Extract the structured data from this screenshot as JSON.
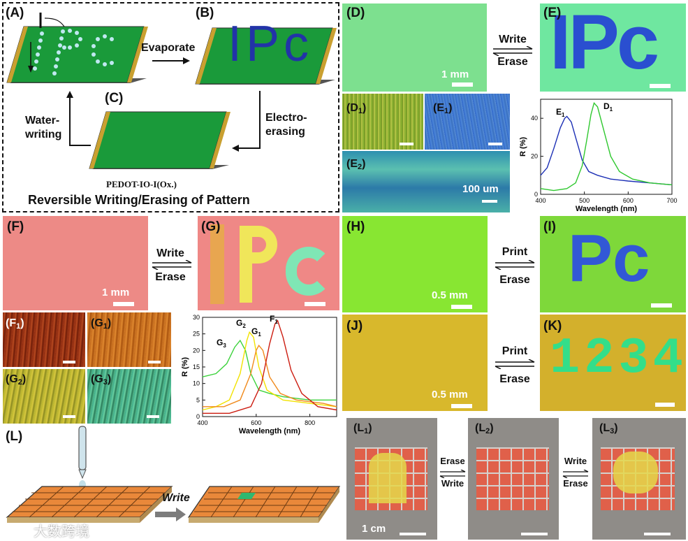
{
  "schematic": {
    "label_A": "(A)",
    "label_B": "(B)",
    "label_C": "(C)",
    "step_evaporate": "Evaporate",
    "step_erase_1": "Electro-",
    "step_erase_2": "erasing",
    "step_write_1": "Water-",
    "step_write_2": "writing",
    "material": "PEDOT-IO-I(Ox.)",
    "caption": "Reversible Writing/Erasing of Pattern",
    "pattern_text": "IPc"
  },
  "panel_DE": {
    "label_D": "(D)",
    "label_E": "(E)",
    "write": "Write",
    "erase": "Erase",
    "scale_D": "1 mm",
    "label_D1": "(D",
    "label_E1": "(E",
    "label_E2": "(E",
    "sub_1": "1",
    "sub_2": "2",
    "scale_E2": "100 um",
    "colors": {
      "bg_D": "#7de08f",
      "bg_E": "#6fe7a0",
      "letters_E": "#2a4fd0"
    }
  },
  "chart_DE": {
    "chart_data": {
      "type": "line",
      "xlabel": "Wavelength (nm)",
      "ylabel": "R (%)",
      "xlim": [
        400,
        700
      ],
      "ylim": [
        0,
        50
      ],
      "xticks": [
        "400",
        "500",
        "600",
        "700"
      ],
      "yticks": [
        "0",
        "20",
        "40"
      ],
      "series": [
        {
          "name": "E1",
          "label": "E",
          "sub": "1",
          "color": "#1c2fb5",
          "x": [
            400,
            415,
            430,
            445,
            455,
            460,
            470,
            480,
            495,
            510,
            530,
            560,
            600,
            650,
            700
          ],
          "y": [
            10,
            14,
            24,
            35,
            40,
            41,
            38,
            30,
            18,
            12,
            10,
            8,
            7,
            6,
            5
          ]
        },
        {
          "name": "D1",
          "label": "D",
          "sub": "1",
          "color": "#2fc82f",
          "x": [
            400,
            430,
            460,
            480,
            495,
            505,
            515,
            522,
            530,
            545,
            560,
            580,
            610,
            650,
            700
          ],
          "y": [
            3,
            2,
            3,
            6,
            15,
            28,
            42,
            48,
            46,
            33,
            20,
            12,
            8,
            6,
            5
          ]
        }
      ]
    }
  },
  "panel_FG": {
    "label_F": "(F)",
    "label_G": "(G)",
    "write": "Write",
    "erase": "Erase",
    "scale_F": "1 mm",
    "label_F1": "(F",
    "label_G1": "(G",
    "label_G2": "(G",
    "label_G3": "(G",
    "sub_1": "1",
    "sub_2": "2",
    "sub_3": "3",
    "pattern_text": "IPc",
    "colors": {
      "bg_F": "#ed8a86",
      "bg_G": "#ef8886",
      "I": "#e8a650",
      "P": "#f0e65a",
      "c": "#7fe6b5"
    }
  },
  "chart_FG": {
    "chart_data": {
      "type": "line",
      "xlabel": "Wavelength (nm)",
      "ylabel": "R (%)",
      "xlim": [
        400,
        900
      ],
      "ylim": [
        0,
        30
      ],
      "xticks": [
        "400",
        "600",
        "800"
      ],
      "yticks": [
        "0",
        "5",
        "10",
        "15",
        "20",
        "25",
        "30"
      ],
      "series": [
        {
          "name": "G3",
          "label": "G",
          "sub": "3",
          "color": "#3cd23c",
          "x": [
            400,
            450,
            490,
            520,
            540,
            560,
            580,
            610,
            650,
            700,
            800,
            900
          ],
          "y": [
            12,
            13,
            16,
            21,
            23,
            20,
            13,
            8,
            7,
            6,
            5,
            5
          ]
        },
        {
          "name": "G2",
          "label": "G",
          "sub": "2",
          "color": "#f2e200",
          "x": [
            400,
            450,
            500,
            540,
            565,
            575,
            590,
            610,
            640,
            700,
            800,
            900
          ],
          "y": [
            2,
            3,
            5,
            13,
            23,
            25.5,
            24,
            15,
            8,
            5,
            4,
            3
          ]
        },
        {
          "name": "G1",
          "label": "G",
          "sub": "1",
          "color": "#f08a1c",
          "x": [
            400,
            480,
            540,
            580,
            600,
            610,
            625,
            650,
            690,
            750,
            850,
            900
          ],
          "y": [
            3,
            3,
            5,
            13,
            20,
            21.5,
            20,
            12,
            7,
            5,
            4,
            3
          ]
        },
        {
          "name": "F1",
          "label": "F",
          "sub": "1",
          "color": "#cc1c10",
          "x": [
            400,
            500,
            580,
            620,
            650,
            670,
            680,
            700,
            730,
            770,
            830,
            900
          ],
          "y": [
            1,
            1,
            3,
            10,
            22,
            28,
            29,
            24,
            14,
            7,
            3,
            2
          ]
        }
      ]
    }
  },
  "panel_HK": {
    "label_H": "(H)",
    "label_I": "(I)",
    "label_J": "(J)",
    "label_K": "(K)",
    "print": "Print",
    "erase": "Erase",
    "scale_H": "0.5 mm",
    "scale_J": "0.5 mm",
    "text_I": "Pc",
    "text_K": "1234",
    "colors": {
      "bg_H": "#88e632",
      "bg_I": "#7ed83a",
      "text_I": "#3258d6",
      "bg_J": "#d8b82c",
      "bg_K": "#d3b02c",
      "text_K": "#33de8a"
    }
  },
  "panel_L": {
    "label_L": "(L)",
    "write": "Write",
    "label_L1": "(L",
    "label_L2": "(L",
    "label_L3": "(L",
    "sub_1": "1",
    "sub_2": "2",
    "sub_3": "3",
    "erase_1": "Erase",
    "write_1": "Write",
    "write_2": "Write",
    "erase_2": "Erase",
    "scale_L1": "1 cm",
    "watermark": "大数跨境"
  }
}
